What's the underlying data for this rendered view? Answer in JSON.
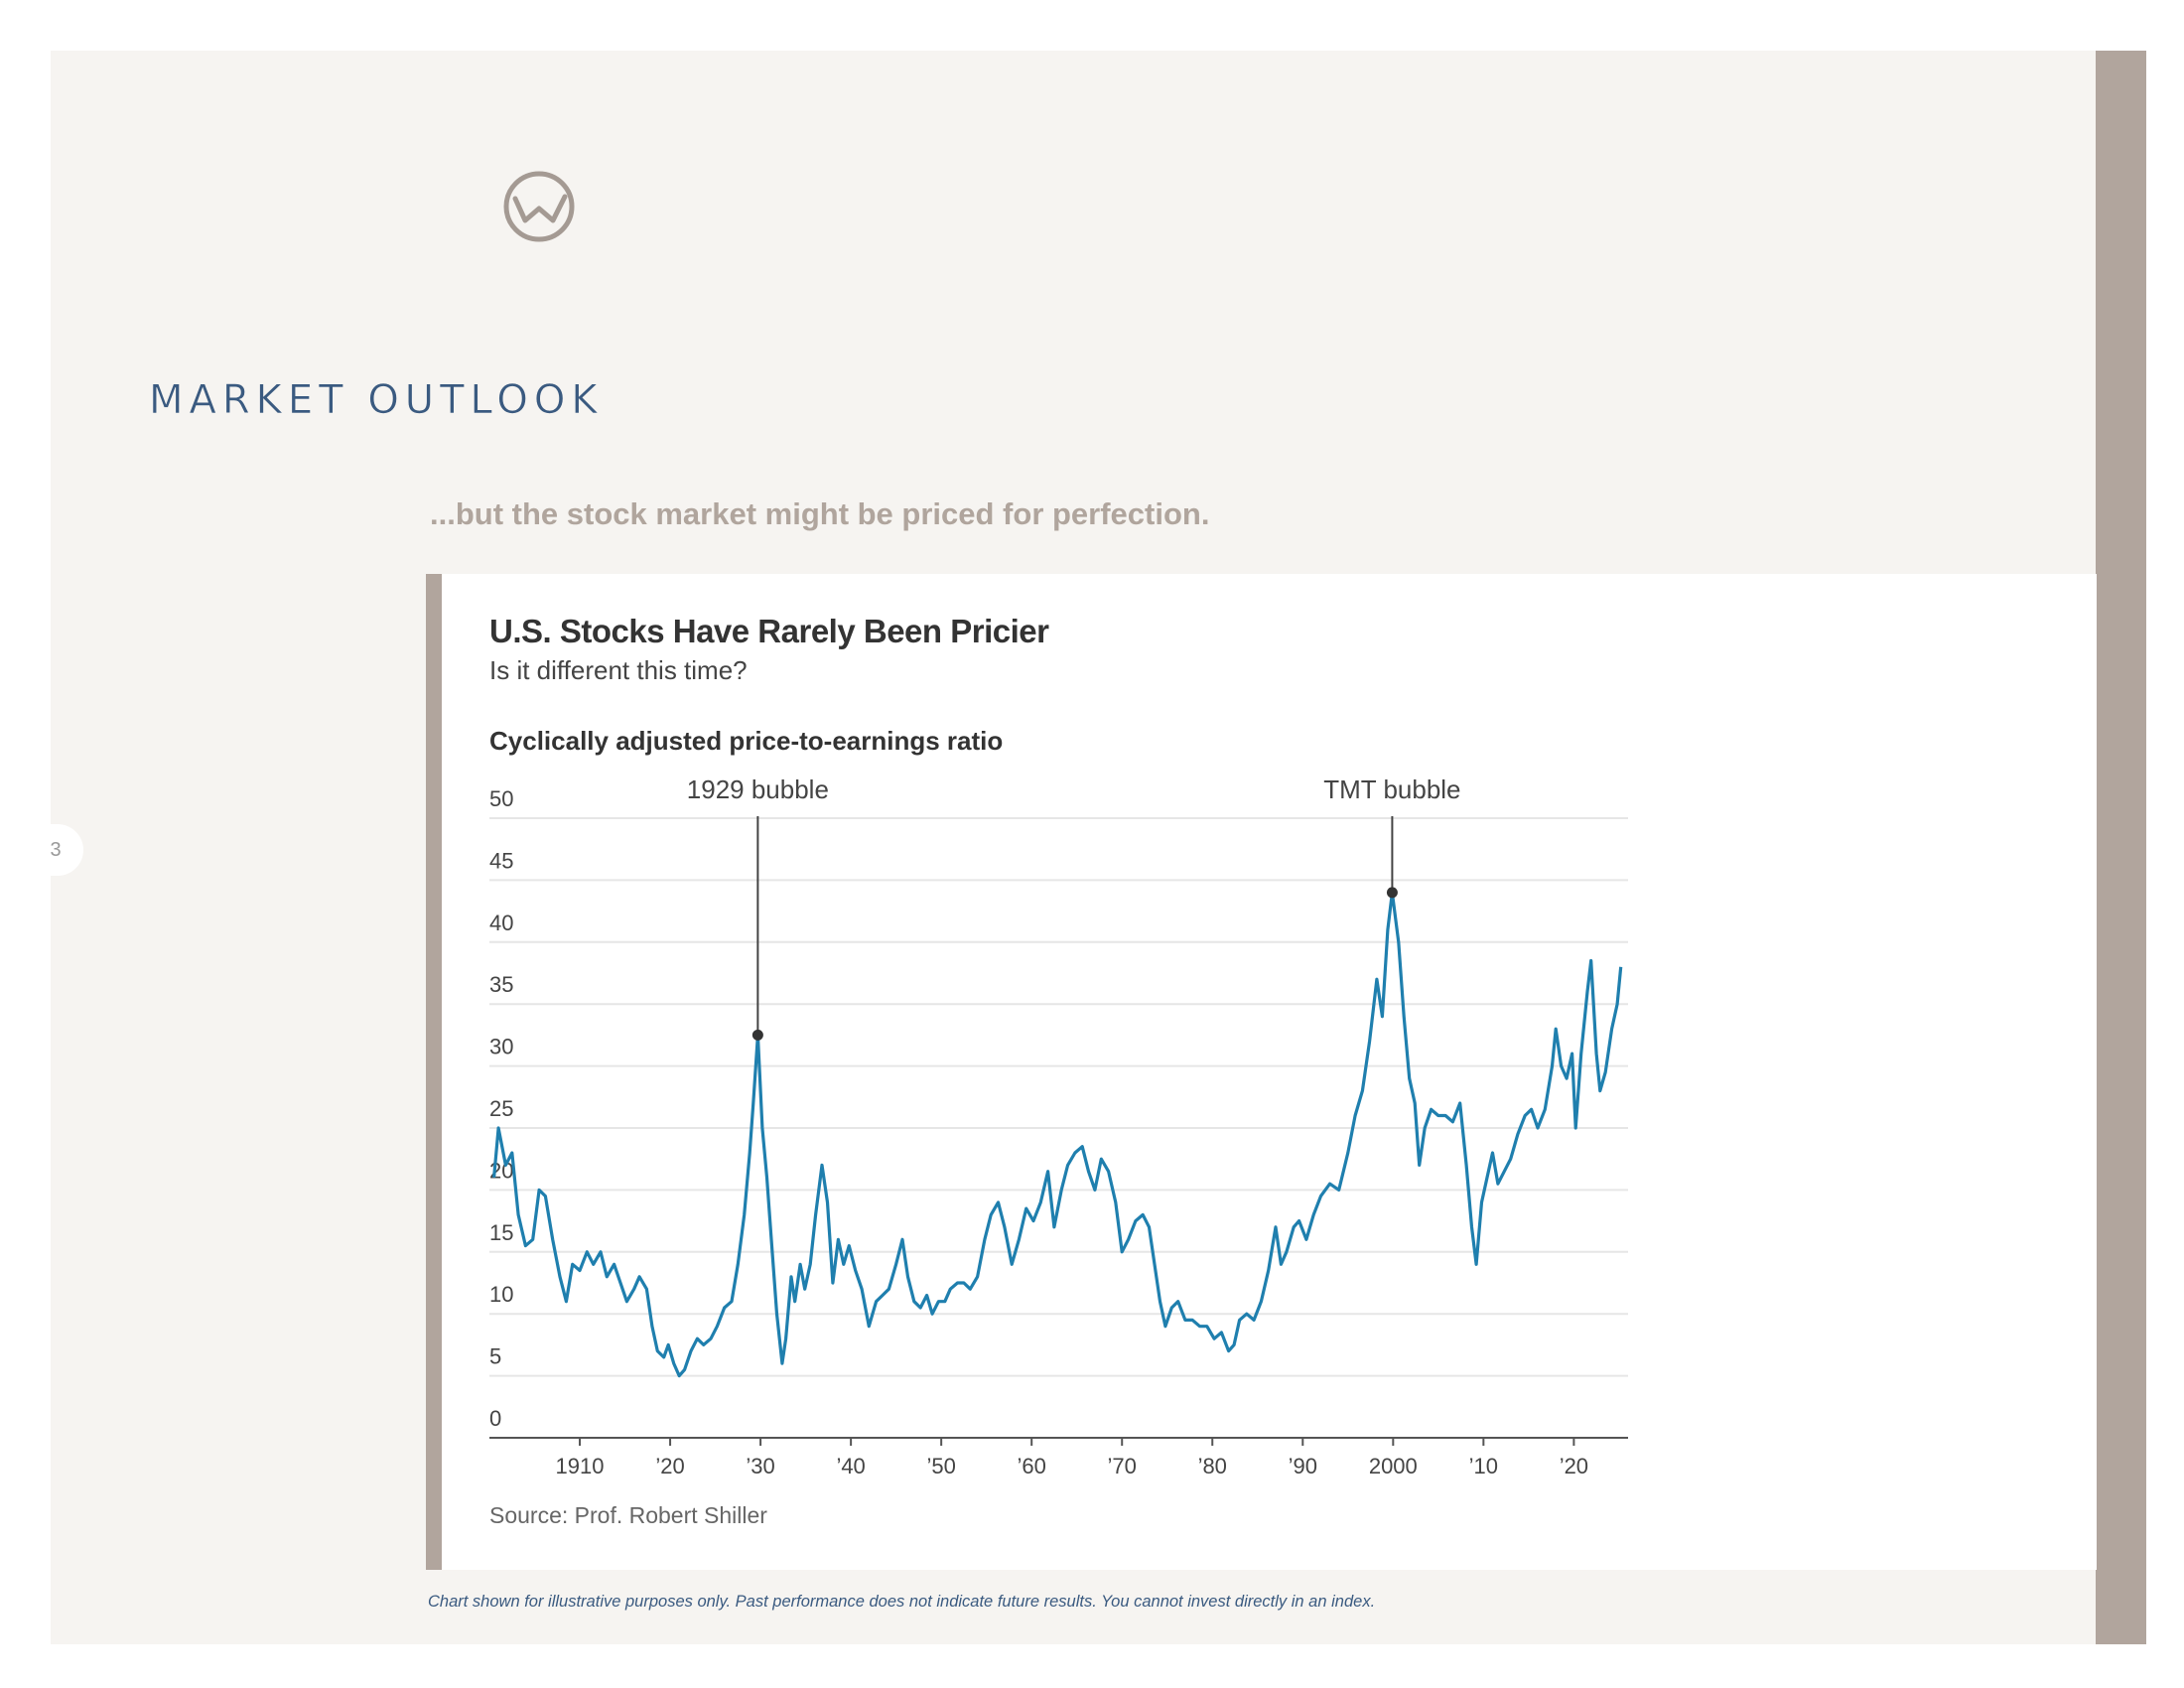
{
  "header": {
    "section_title": "MARKET OUTLOOK",
    "subtitle": "...but the stock market might be priced for perfection.",
    "page_number": "3",
    "logo": "circle-w-logo-icon"
  },
  "colors": {
    "background": "#f6f4f1",
    "accent_taupe": "#b1a59d",
    "navy": "#3a5a80",
    "line": "#1f7fae",
    "gridline": "#e6e6e6"
  },
  "chart_data": {
    "type": "line",
    "title": "U.S. Stocks Have Rarely Been Pricier",
    "subtitle": "Is it different this time?",
    "metric_label": "Cyclically adjusted price-to-earnings ratio",
    "source": "Source: Prof. Robert Shiller",
    "xlabel": "",
    "ylabel": "",
    "xlim": [
      1900,
      2026
    ],
    "ylim": [
      0,
      50
    ],
    "y_ticks": [
      0,
      5,
      10,
      15,
      20,
      25,
      30,
      35,
      40,
      45,
      50
    ],
    "x_ticks": [
      {
        "year": 1910,
        "label": "1910"
      },
      {
        "year": 1920,
        "label": "’20"
      },
      {
        "year": 1930,
        "label": "’30"
      },
      {
        "year": 1940,
        "label": "’40"
      },
      {
        "year": 1950,
        "label": "’50"
      },
      {
        "year": 1960,
        "label": "’60"
      },
      {
        "year": 1970,
        "label": "’70"
      },
      {
        "year": 1980,
        "label": "’80"
      },
      {
        "year": 1990,
        "label": "’90"
      },
      {
        "year": 2000,
        "label": "2000"
      },
      {
        "year": 2010,
        "label": "’10"
      },
      {
        "year": 2020,
        "label": "’20"
      }
    ],
    "grid": true,
    "series": [
      {
        "name": "CAPE ratio",
        "points": [
          [
            1900.5,
            21
          ],
          [
            1901,
            25
          ],
          [
            1901.8,
            22
          ],
          [
            1902.5,
            23
          ],
          [
            1903.2,
            18
          ],
          [
            1904,
            15.5
          ],
          [
            1904.8,
            16
          ],
          [
            1905.5,
            20
          ],
          [
            1906.2,
            19.5
          ],
          [
            1907,
            16
          ],
          [
            1907.8,
            13
          ],
          [
            1908.5,
            11
          ],
          [
            1909.2,
            14
          ],
          [
            1910,
            13.5
          ],
          [
            1910.8,
            15
          ],
          [
            1911.5,
            14
          ],
          [
            1912.3,
            15
          ],
          [
            1913,
            13
          ],
          [
            1913.8,
            14
          ],
          [
            1914.5,
            12.5
          ],
          [
            1915.2,
            11
          ],
          [
            1916,
            12
          ],
          [
            1916.6,
            13
          ],
          [
            1917.4,
            12
          ],
          [
            1918,
            9
          ],
          [
            1918.6,
            7
          ],
          [
            1919.3,
            6.5
          ],
          [
            1919.8,
            7.5
          ],
          [
            1920.4,
            6
          ],
          [
            1921,
            5
          ],
          [
            1921.6,
            5.5
          ],
          [
            1922.3,
            7
          ],
          [
            1923,
            8
          ],
          [
            1923.7,
            7.5
          ],
          [
            1924.5,
            8
          ],
          [
            1925.2,
            9
          ],
          [
            1926,
            10.5
          ],
          [
            1926.8,
            11
          ],
          [
            1927.5,
            14
          ],
          [
            1928.2,
            18
          ],
          [
            1928.8,
            23
          ],
          [
            1929.2,
            27
          ],
          [
            1929.7,
            32.5
          ],
          [
            1930.2,
            25
          ],
          [
            1930.7,
            21
          ],
          [
            1931.2,
            16
          ],
          [
            1931.8,
            10
          ],
          [
            1932.4,
            6
          ],
          [
            1932.8,
            8
          ],
          [
            1933.4,
            13
          ],
          [
            1933.8,
            11
          ],
          [
            1934.4,
            14
          ],
          [
            1934.9,
            12
          ],
          [
            1935.5,
            14
          ],
          [
            1936.1,
            18
          ],
          [
            1936.8,
            22
          ],
          [
            1937.4,
            19
          ],
          [
            1938,
            12.5
          ],
          [
            1938.6,
            16
          ],
          [
            1939.2,
            14
          ],
          [
            1939.8,
            15.5
          ],
          [
            1940.5,
            13.5
          ],
          [
            1941.2,
            12
          ],
          [
            1942,
            9
          ],
          [
            1942.8,
            11
          ],
          [
            1943.5,
            11.5
          ],
          [
            1944.2,
            12
          ],
          [
            1945,
            14
          ],
          [
            1945.7,
            16
          ],
          [
            1946.3,
            13
          ],
          [
            1947,
            11
          ],
          [
            1947.7,
            10.5
          ],
          [
            1948.4,
            11.5
          ],
          [
            1949,
            10
          ],
          [
            1949.7,
            11
          ],
          [
            1950.4,
            11
          ],
          [
            1951,
            12
          ],
          [
            1951.8,
            12.5
          ],
          [
            1952.5,
            12.5
          ],
          [
            1953.2,
            12
          ],
          [
            1954,
            13
          ],
          [
            1954.8,
            16
          ],
          [
            1955.5,
            18
          ],
          [
            1956.3,
            19
          ],
          [
            1957,
            17
          ],
          [
            1957.8,
            14
          ],
          [
            1958.6,
            16
          ],
          [
            1959.4,
            18.5
          ],
          [
            1960.2,
            17.5
          ],
          [
            1961,
            19
          ],
          [
            1961.8,
            21.5
          ],
          [
            1962.5,
            17
          ],
          [
            1963.3,
            20
          ],
          [
            1964,
            22
          ],
          [
            1964.8,
            23
          ],
          [
            1965.6,
            23.5
          ],
          [
            1966.3,
            21.5
          ],
          [
            1967,
            20
          ],
          [
            1967.7,
            22.5
          ],
          [
            1968.5,
            21.5
          ],
          [
            1969.3,
            19
          ],
          [
            1970,
            15
          ],
          [
            1970.7,
            16
          ],
          [
            1971.5,
            17.5
          ],
          [
            1972.3,
            18
          ],
          [
            1973,
            17
          ],
          [
            1973.6,
            14
          ],
          [
            1974.2,
            11
          ],
          [
            1974.8,
            9
          ],
          [
            1975.5,
            10.5
          ],
          [
            1976.2,
            11
          ],
          [
            1977,
            9.5
          ],
          [
            1977.8,
            9.5
          ],
          [
            1978.6,
            9
          ],
          [
            1979.4,
            9
          ],
          [
            1980.2,
            8
          ],
          [
            1981,
            8.5
          ],
          [
            1981.8,
            7
          ],
          [
            1982.4,
            7.5
          ],
          [
            1983,
            9.5
          ],
          [
            1983.8,
            10
          ],
          [
            1984.6,
            9.5
          ],
          [
            1985.4,
            11
          ],
          [
            1986.2,
            13.5
          ],
          [
            1987,
            17
          ],
          [
            1987.6,
            14
          ],
          [
            1988.2,
            15
          ],
          [
            1989,
            17
          ],
          [
            1989.6,
            17.5
          ],
          [
            1990.4,
            16
          ],
          [
            1991.2,
            18
          ],
          [
            1992,
            19.5
          ],
          [
            1993,
            20.5
          ],
          [
            1994,
            20
          ],
          [
            1995,
            23
          ],
          [
            1995.8,
            26
          ],
          [
            1996.6,
            28
          ],
          [
            1997.4,
            32
          ],
          [
            1998.2,
            37
          ],
          [
            1998.8,
            34
          ],
          [
            1999.4,
            41
          ],
          [
            1999.9,
            44
          ],
          [
            2000.6,
            40
          ],
          [
            2001.2,
            34
          ],
          [
            2001.8,
            29
          ],
          [
            2002.4,
            27
          ],
          [
            2002.9,
            22
          ],
          [
            2003.5,
            25
          ],
          [
            2004.2,
            26.5
          ],
          [
            2005,
            26
          ],
          [
            2005.8,
            26
          ],
          [
            2006.6,
            25.5
          ],
          [
            2007.4,
            27
          ],
          [
            2008.1,
            22
          ],
          [
            2008.7,
            17
          ],
          [
            2009.2,
            14
          ],
          [
            2009.8,
            19
          ],
          [
            2010.4,
            21
          ],
          [
            2011,
            23
          ],
          [
            2011.6,
            20.5
          ],
          [
            2012.3,
            21.5
          ],
          [
            2013,
            22.5
          ],
          [
            2013.8,
            24.5
          ],
          [
            2014.6,
            26
          ],
          [
            2015.3,
            26.5
          ],
          [
            2016,
            25
          ],
          [
            2016.8,
            26.5
          ],
          [
            2017.6,
            30
          ],
          [
            2018,
            33
          ],
          [
            2018.6,
            30
          ],
          [
            2019.2,
            29
          ],
          [
            2019.8,
            31
          ],
          [
            2020.2,
            25
          ],
          [
            2020.8,
            31
          ],
          [
            2021.5,
            36
          ],
          [
            2021.9,
            38.5
          ],
          [
            2022.5,
            31
          ],
          [
            2022.9,
            28
          ],
          [
            2023.5,
            29.5
          ],
          [
            2024.2,
            33
          ],
          [
            2024.8,
            35
          ],
          [
            2025.2,
            38
          ]
        ]
      }
    ],
    "annotations": [
      {
        "label": "1929 bubble",
        "year": 1929.7,
        "value": 32.5
      },
      {
        "label": "TMT bubble",
        "year": 1999.9,
        "value": 44
      }
    ]
  },
  "footer": {
    "disclaimer": "Chart shown for illustrative purposes only. Past performance does not indicate future results. You cannot invest directly in an index."
  }
}
